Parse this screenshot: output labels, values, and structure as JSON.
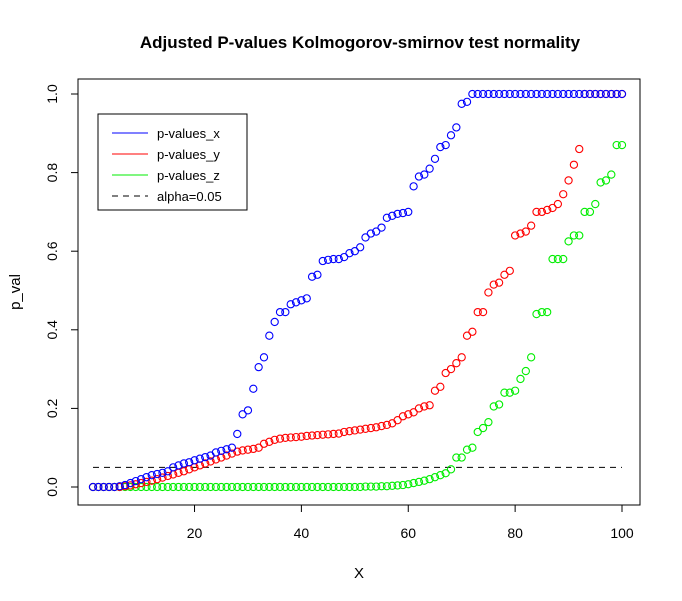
{
  "chart_data": {
    "type": "scatter",
    "title": "Adjusted P-values Kolmogorov-smirnov test normality",
    "xlabel": "X",
    "ylabel": "p_val",
    "xlim": [
      1,
      100
    ],
    "ylim": [
      0,
      1
    ],
    "x_ticks": [
      "20",
      "40",
      "60",
      "80",
      "100"
    ],
    "y_ticks": [
      "0.0",
      "0.2",
      "0.4",
      "0.6",
      "0.8",
      "1.0"
    ],
    "grid": false,
    "legend_position": "top-left",
    "series": [
      {
        "name": "p-values_x",
        "color": "#0000ff",
        "values": [
          0,
          0,
          0,
          0,
          0,
          0.002,
          0.005,
          0.01,
          0.015,
          0.02,
          0.025,
          0.03,
          0.033,
          0.036,
          0.04,
          0.05,
          0.055,
          0.06,
          0.063,
          0.068,
          0.072,
          0.076,
          0.08,
          0.088,
          0.092,
          0.096,
          0.1,
          0.135,
          0.185,
          0.195,
          0.25,
          0.305,
          0.33,
          0.385,
          0.42,
          0.445,
          0.445,
          0.465,
          0.47,
          0.475,
          0.48,
          0.535,
          0.54,
          0.575,
          0.578,
          0.58,
          0.58,
          0.585,
          0.595,
          0.6,
          0.61,
          0.635,
          0.645,
          0.65,
          0.66,
          0.685,
          0.69,
          0.695,
          0.697,
          0.7,
          0.765,
          0.79,
          0.795,
          0.81,
          0.835,
          0.865,
          0.87,
          0.895,
          0.915,
          0.975,
          0.98,
          1,
          1,
          1,
          1,
          1,
          1,
          1,
          1,
          1,
          1,
          1,
          1,
          1,
          1,
          1,
          1,
          1,
          1,
          1,
          1,
          1,
          1,
          1,
          1,
          1,
          1,
          1,
          1,
          1
        ]
      },
      {
        "name": "p-values_y",
        "color": "#ff0000",
        "values": [
          0,
          0,
          0,
          0,
          0,
          0,
          0.002,
          0.004,
          0.007,
          0.01,
          0.013,
          0.016,
          0.02,
          0.024,
          0.028,
          0.032,
          0.036,
          0.04,
          0.045,
          0.05,
          0.055,
          0.06,
          0.065,
          0.07,
          0.075,
          0.08,
          0.085,
          0.09,
          0.093,
          0.095,
          0.097,
          0.1,
          0.11,
          0.115,
          0.12,
          0.123,
          0.125,
          0.126,
          0.127,
          0.128,
          0.13,
          0.131,
          0.132,
          0.133,
          0.134,
          0.135,
          0.136,
          0.14,
          0.142,
          0.144,
          0.146,
          0.148,
          0.15,
          0.152,
          0.155,
          0.158,
          0.162,
          0.17,
          0.18,
          0.185,
          0.19,
          0.2,
          0.205,
          0.208,
          0.245,
          0.255,
          0.29,
          0.3,
          0.315,
          0.33,
          0.385,
          0.395,
          0.445,
          0.445,
          0.495,
          0.515,
          0.52,
          0.54,
          0.55,
          0.64,
          0.645,
          0.65,
          0.665,
          0.7,
          0.7,
          0.705,
          0.71,
          0.72,
          0.745,
          0.78,
          0.82,
          0.86,
          1,
          1,
          1,
          1,
          1,
          1,
          1,
          1
        ]
      },
      {
        "name": "p-values_z",
        "color": "#00ee00",
        "values": [
          0,
          0,
          0,
          0,
          0,
          0,
          0,
          0,
          0,
          0,
          0,
          0,
          0,
          0,
          0,
          0,
          0,
          0,
          0,
          0,
          0,
          0,
          0,
          0,
          0,
          0,
          0,
          0,
          0,
          0,
          0,
          0,
          0,
          0,
          0,
          0,
          0,
          0,
          0,
          0,
          0,
          0,
          0,
          0,
          0,
          0,
          0,
          0,
          0,
          0,
          0,
          0.001,
          0.001,
          0.001,
          0.002,
          0.002,
          0.003,
          0.004,
          0.005,
          0.007,
          0.01,
          0.013,
          0.016,
          0.02,
          0.025,
          0.03,
          0.035,
          0.045,
          0.075,
          0.075,
          0.095,
          0.1,
          0.14,
          0.15,
          0.165,
          0.205,
          0.21,
          0.24,
          0.24,
          0.245,
          0.275,
          0.295,
          0.33,
          0.44,
          0.445,
          0.445,
          0.58,
          0.58,
          0.58,
          0.625,
          0.64,
          0.64,
          0.7,
          0.7,
          0.72,
          0.775,
          0.78,
          0.795,
          0.87,
          0.87
        ]
      },
      {
        "name": "alpha=0.05",
        "color": "#000000",
        "line_style": "dashed",
        "values": [
          0.05,
          0.05
        ]
      }
    ]
  }
}
